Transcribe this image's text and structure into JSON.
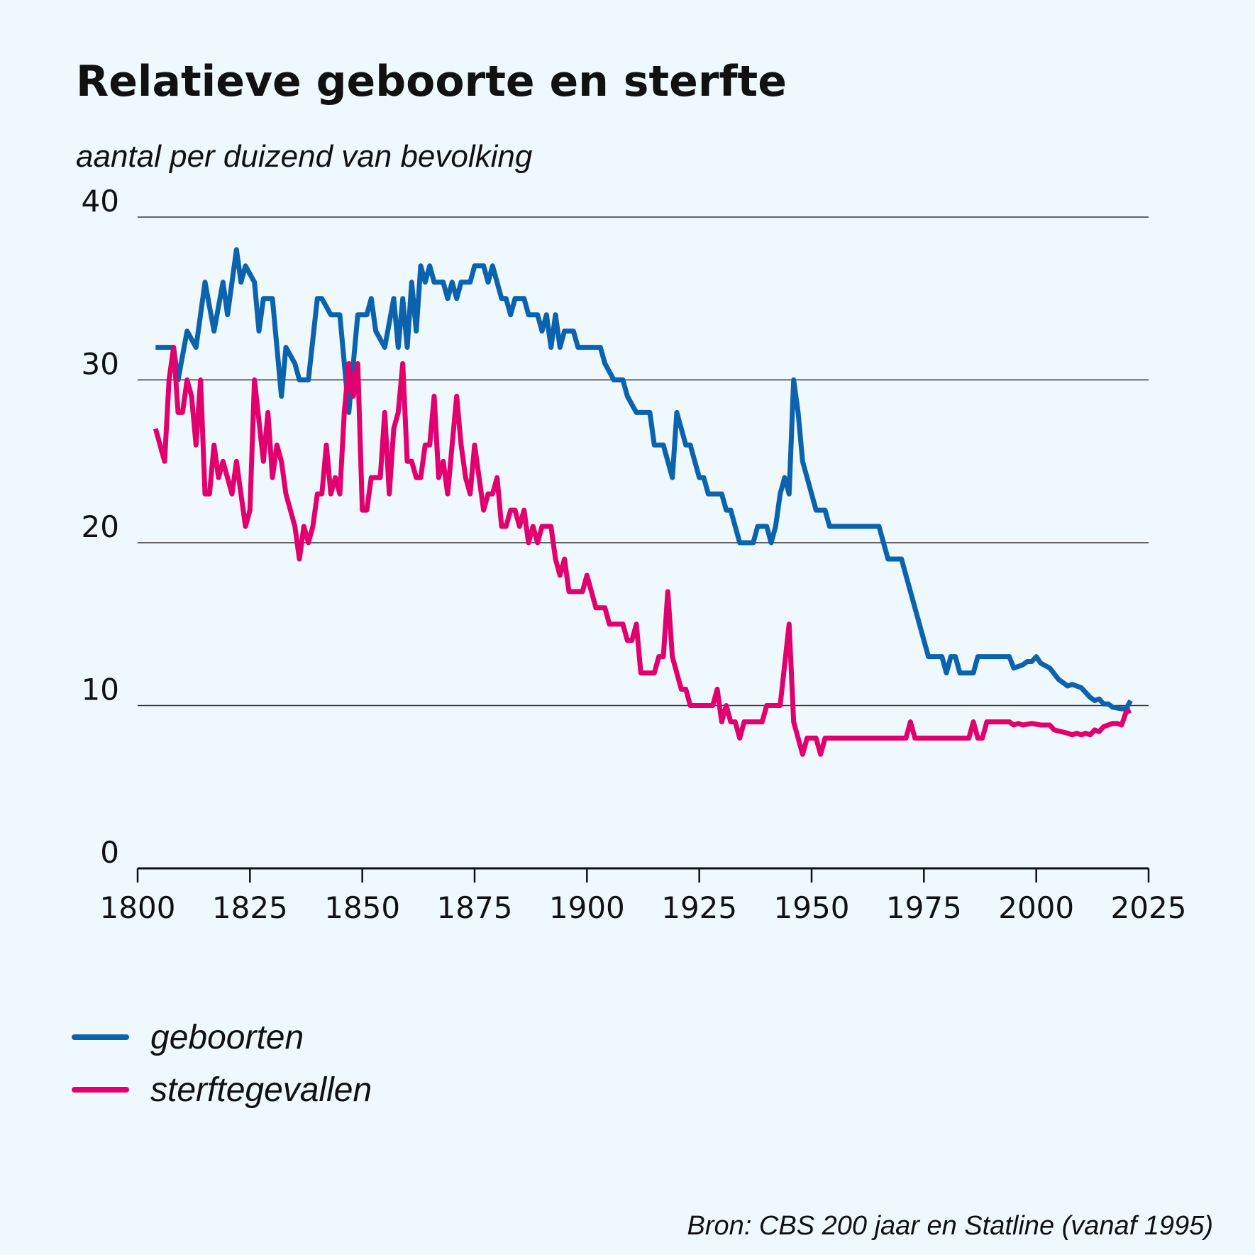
{
  "chart_data": {
    "type": "line",
    "title": "Relatieve geboorte en sterfte",
    "subtitle": "aantal per duizend van bevolking",
    "source": "Bron: CBS 200 jaar en Statline (vanaf 1995)",
    "xlim": [
      1800,
      2025
    ],
    "xticks": [
      1800,
      1825,
      1850,
      1875,
      1900,
      1925,
      1950,
      1975,
      2000,
      2025
    ],
    "ylim": [
      0,
      40
    ],
    "yticks": [
      0,
      10,
      20,
      30,
      40
    ],
    "grid": true,
    "legend": "bottom-left",
    "series": [
      {
        "name": "geboorten",
        "color": "#0b63ae",
        "x": [
          1804,
          1808,
          1809,
          1811,
          1813,
          1815,
          1817,
          1819,
          1820,
          1822,
          1823,
          1824,
          1826,
          1827,
          1828,
          1830,
          1832,
          1833,
          1835,
          1836,
          1838,
          1840,
          1841,
          1843,
          1845,
          1847,
          1849,
          1851,
          1852,
          1853,
          1855,
          1857,
          1858,
          1859,
          1860,
          1861,
          1862,
          1863,
          1864,
          1865,
          1866,
          1868,
          1869,
          1870,
          1871,
          1872,
          1874,
          1875,
          1877,
          1878,
          1879,
          1881,
          1882,
          1883,
          1884,
          1886,
          1887,
          1889,
          1890,
          1891,
          1892,
          1893,
          1894,
          1895,
          1897,
          1898,
          1900,
          1903,
          1904,
          1906,
          1908,
          1909,
          1911,
          1914,
          1915,
          1917,
          1919,
          1920,
          1922,
          1923,
          1925,
          1926,
          1927,
          1930,
          1931,
          1932,
          1933,
          1934,
          1937,
          1938,
          1940,
          1941,
          1942,
          1943,
          1944,
          1945,
          1946,
          1947,
          1948,
          1950,
          1951,
          1953,
          1954,
          1965,
          1967,
          1970,
          1975,
          1976,
          1979,
          1980,
          1981,
          1982,
          1983,
          1986,
          1987,
          1994,
          1995,
          1997,
          1998,
          1999,
          2000,
          2001,
          2003,
          2005,
          2007,
          2008,
          2010,
          2012,
          2013,
          2014,
          2015,
          2016,
          2017,
          2019,
          2020,
          2021
        ],
        "values": [
          32,
          32,
          30,
          33,
          32,
          36,
          33,
          36,
          34,
          38,
          36,
          37,
          36,
          33,
          35,
          35,
          29,
          32,
          31,
          30,
          30,
          35,
          35,
          34,
          34,
          28,
          34,
          34,
          35,
          33,
          32,
          35,
          32,
          35,
          32,
          36,
          33,
          37,
          36,
          37,
          36,
          36,
          35,
          36,
          35,
          36,
          36,
          37,
          37,
          36,
          37,
          35,
          35,
          34,
          35,
          35,
          34,
          34,
          33,
          34,
          32,
          34,
          32,
          33,
          33,
          32,
          32,
          32,
          31,
          30,
          30,
          29,
          28,
          28,
          26,
          26,
          24,
          28,
          26,
          26,
          24,
          24,
          23,
          23,
          22,
          22,
          21,
          20,
          20,
          21,
          21,
          20,
          21,
          23,
          24,
          23,
          30,
          28,
          25,
          23,
          22,
          22,
          21,
          21,
          19,
          19,
          14,
          13,
          13,
          12,
          13,
          13,
          12,
          12,
          13,
          13,
          12.3,
          12.5,
          12.7,
          12.7,
          13,
          12.6,
          12.3,
          11.6,
          11.2,
          11.3,
          11.1,
          10.5,
          10.3,
          10.4,
          10.1,
          10.1,
          9.9,
          9.8,
          9.8,
          10.3
        ]
      },
      {
        "name": "sterftegevallen",
        "color": "#e2006f",
        "x": [
          1804,
          1806,
          1807,
          1808,
          1809,
          1810,
          1811,
          1812,
          1813,
          1814,
          1815,
          1816,
          1817,
          1818,
          1819,
          1821,
          1822,
          1824,
          1825,
          1826,
          1828,
          1829,
          1830,
          1831,
          1832,
          1833,
          1835,
          1836,
          1837,
          1838,
          1839,
          1840,
          1841,
          1842,
          1843,
          1844,
          1845,
          1846,
          1847,
          1848,
          1849,
          1850,
          1851,
          1852,
          1854,
          1855,
          1856,
          1857,
          1858,
          1859,
          1860,
          1861,
          1862,
          1863,
          1864,
          1865,
          1866,
          1867,
          1868,
          1869,
          1870,
          1871,
          1872,
          1873,
          1874,
          1875,
          1876,
          1877,
          1878,
          1879,
          1880,
          1881,
          1882,
          1883,
          1884,
          1885,
          1886,
          1887,
          1888,
          1889,
          1890,
          1892,
          1893,
          1894,
          1895,
          1896,
          1899,
          1900,
          1902,
          1904,
          1905,
          1908,
          1909,
          1910,
          1911,
          1912,
          1915,
          1916,
          1917,
          1918,
          1919,
          1921,
          1922,
          1923,
          1928,
          1929,
          1930,
          1931,
          1932,
          1933,
          1934,
          1935,
          1939,
          1940,
          1943,
          1945,
          1946,
          1948,
          1949,
          1951,
          1952,
          1953,
          1971,
          1972,
          1973,
          1985,
          1986,
          1987,
          1988,
          1989,
          1994,
          1995,
          1996,
          1997,
          1999,
          2001,
          2003,
          2004,
          2007,
          2008,
          2009,
          2010,
          2011,
          2012,
          2013,
          2014,
          2015,
          2017,
          2018,
          2019,
          2020,
          2021
        ],
        "values": [
          27,
          25,
          30,
          32,
          28,
          28,
          30,
          29,
          26,
          30,
          23,
          23,
          26,
          24,
          25,
          23,
          25,
          21,
          22,
          30,
          25,
          28,
          24,
          26,
          25,
          23,
          21,
          19,
          21,
          20,
          21,
          23,
          23,
          26,
          23,
          24,
          23,
          28,
          31,
          29,
          31,
          22,
          22,
          24,
          24,
          28,
          23,
          27,
          28,
          31,
          25,
          25,
          24,
          24,
          26,
          26,
          29,
          24,
          25,
          23,
          26,
          29,
          26,
          24,
          23,
          26,
          24,
          22,
          23,
          23,
          24,
          21,
          21,
          22,
          22,
          21,
          22,
          20,
          21,
          20,
          21,
          21,
          19,
          18,
          19,
          17,
          17,
          18,
          16,
          16,
          15,
          15,
          14,
          14,
          15,
          12,
          12,
          13,
          13,
          17,
          13,
          11,
          11,
          10,
          10,
          11,
          9,
          10,
          9,
          9,
          8,
          9,
          9,
          10,
          10,
          15,
          9,
          7,
          8,
          8,
          7,
          8,
          8,
          9,
          8,
          8,
          9,
          8,
          8,
          9,
          9,
          8.8,
          8.9,
          8.8,
          8.9,
          8.8,
          8.8,
          8.5,
          8.3,
          8.2,
          8.3,
          8.2,
          8.3,
          8.2,
          8.5,
          8.4,
          8.7,
          8.9,
          8.9,
          8.8,
          9.6,
          9.7
        ]
      }
    ]
  }
}
